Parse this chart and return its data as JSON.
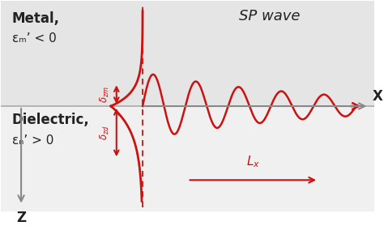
{
  "bg_color_top": "#e5e5e5",
  "bg_color_bottom": "#f0f0f0",
  "metal_label": "Metal,",
  "metal_epsilon": "εₘ’ < 0",
  "dielectric_label": "Dielectric,",
  "dielectric_epsilon": "εₙ’ > 0",
  "sp_wave_label": "SP wave",
  "x_arrow_label": "X",
  "z_arrow_label": "Z",
  "lx_label": "Lₓ",
  "red_color": "#cc1111",
  "axis_color": "#888888",
  "text_color": "#222222",
  "interface_color": "#aaaaaa"
}
